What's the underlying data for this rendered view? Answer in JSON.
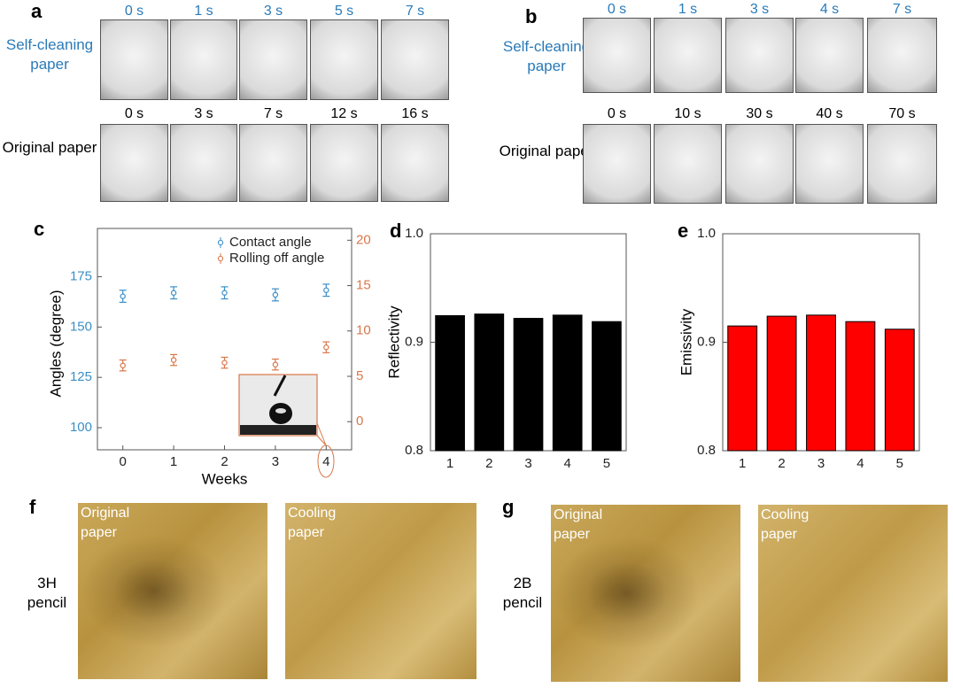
{
  "panels": {
    "a": {
      "letter": "a",
      "rows": [
        {
          "label": "Self-cleaning paper",
          "times": [
            "0 s",
            "1 s",
            "3 s",
            "5 s",
            "7 s"
          ]
        },
        {
          "label": "Original paper",
          "times": [
            "0 s",
            "3 s",
            "7 s",
            "12 s",
            "16 s"
          ]
        }
      ]
    },
    "b": {
      "letter": "b",
      "rows": [
        {
          "label": "Self-cleaning paper",
          "times": [
            "0 s",
            "1 s",
            "3 s",
            "4 s",
            "7 s"
          ]
        },
        {
          "label": "Original paper",
          "times": [
            "0 s",
            "10 s",
            "30 s",
            "40 s",
            "70 s"
          ]
        }
      ]
    },
    "c": {
      "letter": "c"
    },
    "d": {
      "letter": "d"
    },
    "e": {
      "letter": "e"
    },
    "f": {
      "letter": "f",
      "pencil": "3H pencil",
      "images": [
        "Original paper",
        "Cooling paper"
      ]
    },
    "g": {
      "letter": "g",
      "pencil": "2B pencil",
      "images": [
        "Original paper",
        "Cooling paper"
      ]
    }
  },
  "chart_data": [
    {
      "type": "scatter",
      "x_label": "Weeks",
      "y_label": "Angles (degree)",
      "x": [
        0,
        1,
        2,
        3,
        4
      ],
      "xlim": [
        -0.5,
        4.5
      ],
      "xticks": [
        0,
        1,
        2,
        3,
        4
      ],
      "ylim": [
        89,
        199
      ],
      "yticks": [
        100,
        125,
        150,
        175
      ],
      "y2lim": [
        -3.1,
        21.3
      ],
      "y2ticks": [
        0,
        5,
        10,
        15,
        20
      ],
      "legend": "upper right",
      "series": [
        {
          "name": "Contact angle",
          "color": "#3a8fc6",
          "values": [
            165.3,
            167,
            167,
            166,
            168.3
          ],
          "errors": [
            3,
            3,
            3,
            3,
            3
          ]
        },
        {
          "name": "Rolling off angle",
          "color": "#d9774a",
          "axis": "y2",
          "values": [
            6.2,
            6.8,
            6.5,
            6.3,
            8.2
          ],
          "errors": [
            0.6,
            0.6,
            0.6,
            0.6,
            0.6
          ]
        }
      ]
    },
    {
      "type": "bar",
      "y_label": "Reflectivity",
      "categories": [
        "1",
        "2",
        "3",
        "4",
        "5"
      ],
      "values": [
        0.9245,
        0.926,
        0.922,
        0.925,
        0.919
      ],
      "color": "#000000",
      "ylim": [
        0.8,
        1.0
      ],
      "yticks": [
        0.8,
        0.9,
        {
          "value": 1.0,
          "label": "1.0"
        }
      ]
    },
    {
      "type": "bar",
      "y_label": "Emissivity",
      "categories": [
        "1",
        "2",
        "3",
        "4",
        "5"
      ],
      "values": [
        0.915,
        0.924,
        0.925,
        0.919,
        0.912
      ],
      "color": "#ff0000",
      "ylim": [
        0.8,
        1.0
      ],
      "yticks": [
        0.8,
        0.9,
        {
          "value": 1.0,
          "label": "1.0"
        }
      ]
    }
  ]
}
